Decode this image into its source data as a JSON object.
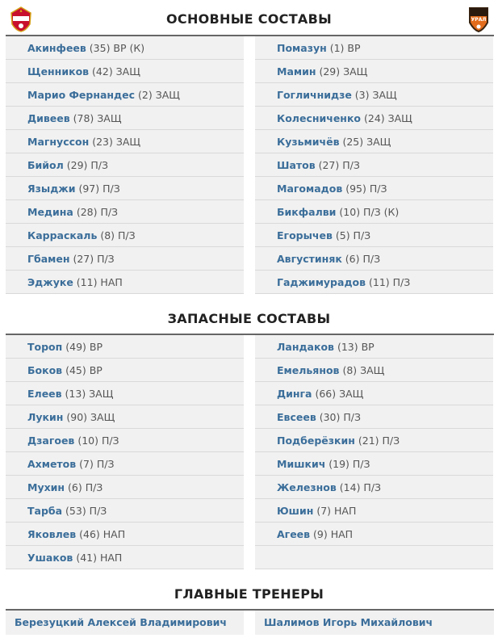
{
  "teams": {
    "home_logo": "CSKA",
    "away_logo": "URAL"
  },
  "sections": {
    "starting": "ОСНОВНЫЕ СОСТАВЫ",
    "subs": "ЗАПАСНЫЕ СОСТАВЫ",
    "coaches": "ГЛАВНЫЕ ТРЕНЕРЫ"
  },
  "starting": {
    "home": [
      {
        "name": "Акинфеев",
        "info": " (35) ВР (К)"
      },
      {
        "name": "Щенников",
        "info": " (42) ЗАЩ"
      },
      {
        "name": "Марио Фернандес",
        "info": " (2) ЗАЩ"
      },
      {
        "name": "Дивеев",
        "info": " (78) ЗАЩ"
      },
      {
        "name": "Магнуссон",
        "info": " (23) ЗАЩ"
      },
      {
        "name": "Бийол",
        "info": " (29) П/З"
      },
      {
        "name": "Языджи",
        "info": " (97) П/З"
      },
      {
        "name": "Медина",
        "info": " (28) П/З"
      },
      {
        "name": "Карраскаль",
        "info": " (8) П/З"
      },
      {
        "name": "Гбамен",
        "info": " (27) П/З"
      },
      {
        "name": "Эджуке",
        "info": " (11) НАП"
      }
    ],
    "away": [
      {
        "name": "Помазун",
        "info": " (1) ВР"
      },
      {
        "name": "Мамин",
        "info": " (29) ЗАЩ"
      },
      {
        "name": "Гоглични​дзе",
        "info": " (3) ЗАЩ"
      },
      {
        "name": "Колесниченко",
        "info": " (24) ЗАЩ"
      },
      {
        "name": "Кузьмичёв",
        "info": " (25) ЗАЩ"
      },
      {
        "name": "Шатов",
        "info": " (27) П/З"
      },
      {
        "name": "Магомадов",
        "info": " (95) П/З"
      },
      {
        "name": "Бикфалви",
        "info": " (10) П/З (К)"
      },
      {
        "name": "Егорычев",
        "info": " (5) П/З"
      },
      {
        "name": "Августиняк",
        "info": " (6) П/З"
      },
      {
        "name": "Гаджимурадов",
        "info": " (11) П/З"
      }
    ]
  },
  "subs": {
    "home": [
      {
        "name": "Тороп",
        "info": " (49) ВР"
      },
      {
        "name": "Боков",
        "info": " (45) ВР"
      },
      {
        "name": "Елеев",
        "info": " (13) ЗАЩ"
      },
      {
        "name": "Лукин",
        "info": " (90) ЗАЩ"
      },
      {
        "name": "Дзагоев",
        "info": " (10) П/З"
      },
      {
        "name": "Ахметов",
        "info": " (7) П/З"
      },
      {
        "name": "Мухин",
        "info": " (6) П/З"
      },
      {
        "name": "Тарба",
        "info": " (53) П/З"
      },
      {
        "name": "Яковлев",
        "info": " (46) НАП"
      },
      {
        "name": "Ушаков",
        "info": " (41) НАП"
      }
    ],
    "away": [
      {
        "name": "Ландаков",
        "info": " (13) ВР"
      },
      {
        "name": "Емельянов",
        "info": " (8) ЗАЩ"
      },
      {
        "name": "Динга",
        "info": " (66) ЗАЩ"
      },
      {
        "name": "Евсеев",
        "info": " (30) П/З"
      },
      {
        "name": "Подберёзкин",
        "info": " (21) П/З"
      },
      {
        "name": "Мишкич",
        "info": " (19) П/З"
      },
      {
        "name": "Железнов",
        "info": " (14) П/З"
      },
      {
        "name": "Юшин",
        "info": " (7) НАП"
      },
      {
        "name": "Агеев",
        "info": " (9) НАП"
      },
      {
        "name": "",
        "info": ""
      }
    ]
  },
  "coaches": {
    "home": "Березуцкий Алексей Владимирович",
    "away": "Шалимов Игорь Михайлович"
  }
}
